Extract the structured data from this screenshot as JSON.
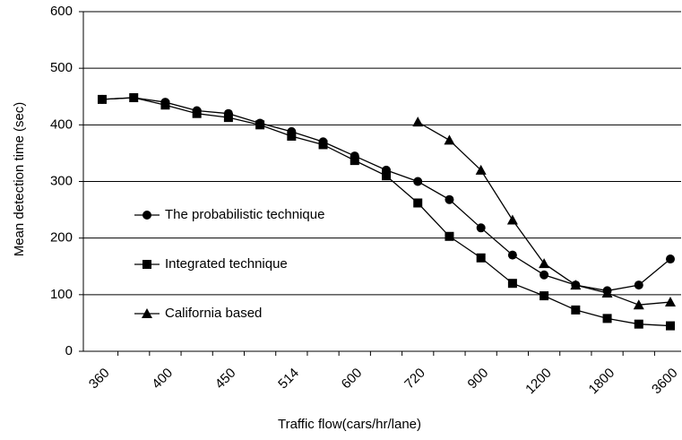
{
  "chart_data": {
    "type": "line",
    "x_label": "Traffic flow(cars/hr/lane)",
    "y_label": "Mean detection time (sec)",
    "categories": [
      "360",
      null,
      "400",
      null,
      "450",
      null,
      "514",
      null,
      "600",
      null,
      "720",
      null,
      "900",
      null,
      "1200",
      null,
      "1800",
      null,
      "3600"
    ],
    "series": [
      {
        "name": "The probabilistic technique",
        "color": "#000000",
        "marker": "circle",
        "values": [
          445,
          448,
          440,
          425,
          420,
          403,
          388,
          370,
          345,
          320,
          300,
          268,
          218,
          170,
          135,
          117,
          107,
          117,
          163
        ]
      },
      {
        "name": "Integrated technique",
        "color": "#000000",
        "marker": "square",
        "values": [
          445,
          448,
          435,
          420,
          413,
          400,
          380,
          365,
          337,
          310,
          262,
          203,
          165,
          120,
          98,
          73,
          58,
          48,
          45
        ]
      },
      {
        "name": "California based",
        "color": "#000000",
        "marker": "triangle",
        "values": [
          null,
          null,
          null,
          null,
          null,
          null,
          null,
          null,
          null,
          null,
          405,
          373,
          320,
          232,
          155,
          117,
          103,
          82,
          87
        ]
      }
    ],
    "ylim": [
      0,
      600
    ],
    "yticks": [
      0,
      100,
      200,
      300,
      400,
      500,
      600
    ],
    "grid": true
  }
}
